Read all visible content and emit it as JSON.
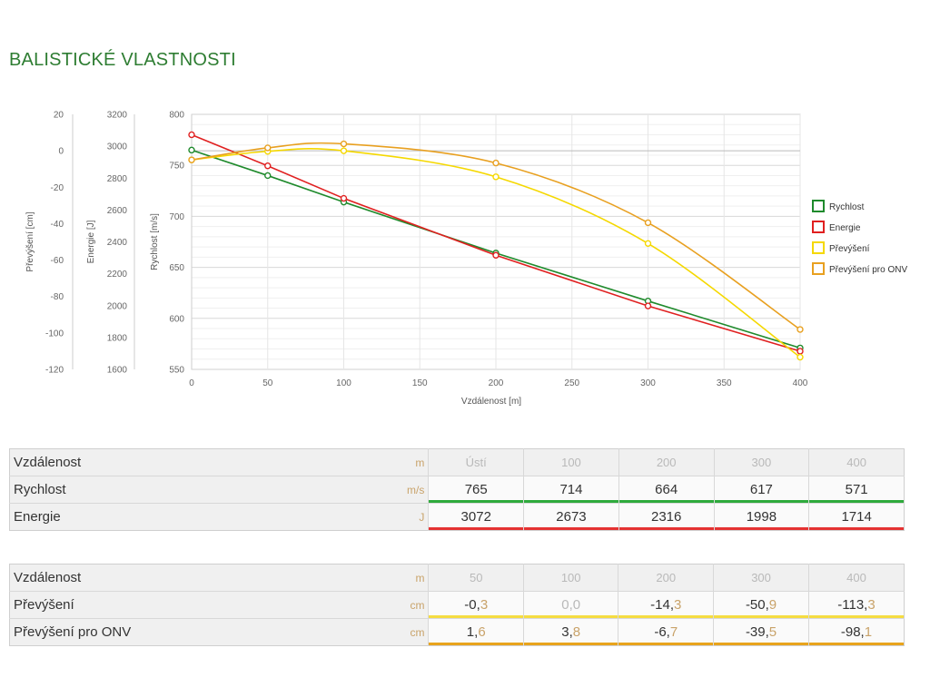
{
  "page": {
    "title": "BALISTICKÉ VLASTNOSTI"
  },
  "chart_data": {
    "type": "line",
    "x": [
      0,
      50,
      100,
      200,
      300,
      400
    ],
    "xlabel": "Vzdálenost [m]",
    "xlim": [
      0,
      400
    ],
    "x_ticks": [
      "0",
      "50",
      "100",
      "150",
      "200",
      "250",
      "300",
      "350",
      "400"
    ],
    "axes": [
      {
        "label": "Převýšení [cm]",
        "ylim": [
          -120,
          20
        ],
        "ticks": [
          "20",
          "0",
          "-20",
          "-40",
          "-60",
          "-80",
          "-100",
          "-120"
        ]
      },
      {
        "label": "Energie [J]",
        "ylim": [
          1600,
          3200
        ],
        "ticks": [
          "3200",
          "3000",
          "2800",
          "2600",
          "2400",
          "2200",
          "2000",
          "1800",
          "1600"
        ]
      },
      {
        "label": "Rychlost [m/s]",
        "ylim": [
          550,
          800
        ],
        "ticks": [
          "800",
          "750",
          "700",
          "650",
          "600",
          "550"
        ]
      }
    ],
    "series": [
      {
        "name": "Rychlost",
        "axis": 2,
        "color": "#1f8a2c",
        "values": [
          765,
          740,
          714,
          664,
          617,
          571
        ]
      },
      {
        "name": "Energie",
        "axis": 1,
        "color": "#e02020",
        "values": [
          3072,
          2877,
          2673,
          2316,
          1998,
          1714
        ]
      },
      {
        "name": "Převýšení",
        "axis": 0,
        "color": "#f5d800",
        "values": [
          -5,
          -0.3,
          0.0,
          -14.3,
          -50.9,
          -113.3
        ]
      },
      {
        "name": "Převýšení pro ONV",
        "axis": 0,
        "color": "#e8a020",
        "values": [
          -5,
          1.6,
          3.8,
          -6.7,
          -39.5,
          -98.1
        ]
      }
    ],
    "grid": true,
    "legend": "right"
  },
  "table1": {
    "rows": [
      {
        "label": "Vzdálenost",
        "unit": "m",
        "values": [
          "Ústí",
          "100",
          "200",
          "300",
          "400"
        ]
      },
      {
        "label": "Rychlost",
        "unit": "m/s",
        "values": [
          "765",
          "714",
          "664",
          "617",
          "571"
        ]
      },
      {
        "label": "Energie",
        "unit": "J",
        "values": [
          "3072",
          "2673",
          "2316",
          "1998",
          "1714"
        ]
      }
    ]
  },
  "table2": {
    "rows": [
      {
        "label": "Vzdálenost",
        "unit": "m",
        "values": [
          "50",
          "100",
          "200",
          "300",
          "400"
        ]
      },
      {
        "label": "Převýšení",
        "unit": "cm",
        "values": [
          "-0,3",
          "0,0",
          "-14,3",
          "-50,9",
          "-113,3"
        ]
      },
      {
        "label": "Převýšení pro ONV",
        "unit": "cm",
        "values": [
          "1,6",
          "3,8",
          "-6,7",
          "-39,5",
          "-98,1"
        ]
      }
    ]
  }
}
